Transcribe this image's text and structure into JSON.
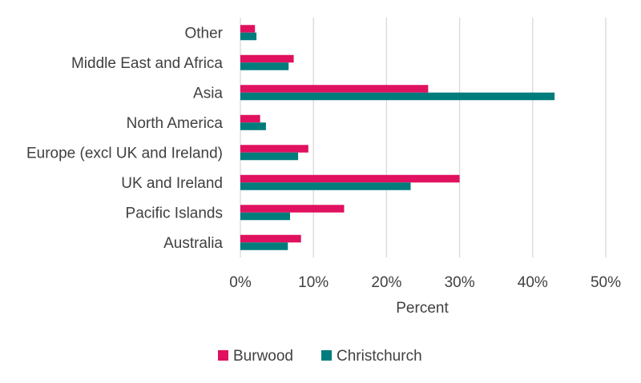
{
  "chart_data": {
    "type": "bar",
    "orientation": "horizontal",
    "categories": [
      "Other",
      "Middle East and Africa",
      "Asia",
      "North America",
      "Europe (excl UK and Ireland)",
      "UK and Ireland",
      "Pacific Islands",
      "Australia"
    ],
    "series": [
      {
        "name": "Burwood",
        "color": "#e0115f",
        "values": [
          2.0,
          7.3,
          25.7,
          2.7,
          9.3,
          30.0,
          14.2,
          8.3
        ]
      },
      {
        "name": "Christchurch",
        "color": "#007c7c",
        "values": [
          2.2,
          6.6,
          43.0,
          3.5,
          7.9,
          23.3,
          6.8,
          6.5
        ]
      }
    ],
    "xlabel": "Percent",
    "xlim": [
      0,
      50
    ],
    "xticks": [
      "0%",
      "10%",
      "20%",
      "30%",
      "40%",
      "50%"
    ],
    "grid": true,
    "legend": "bottom"
  }
}
